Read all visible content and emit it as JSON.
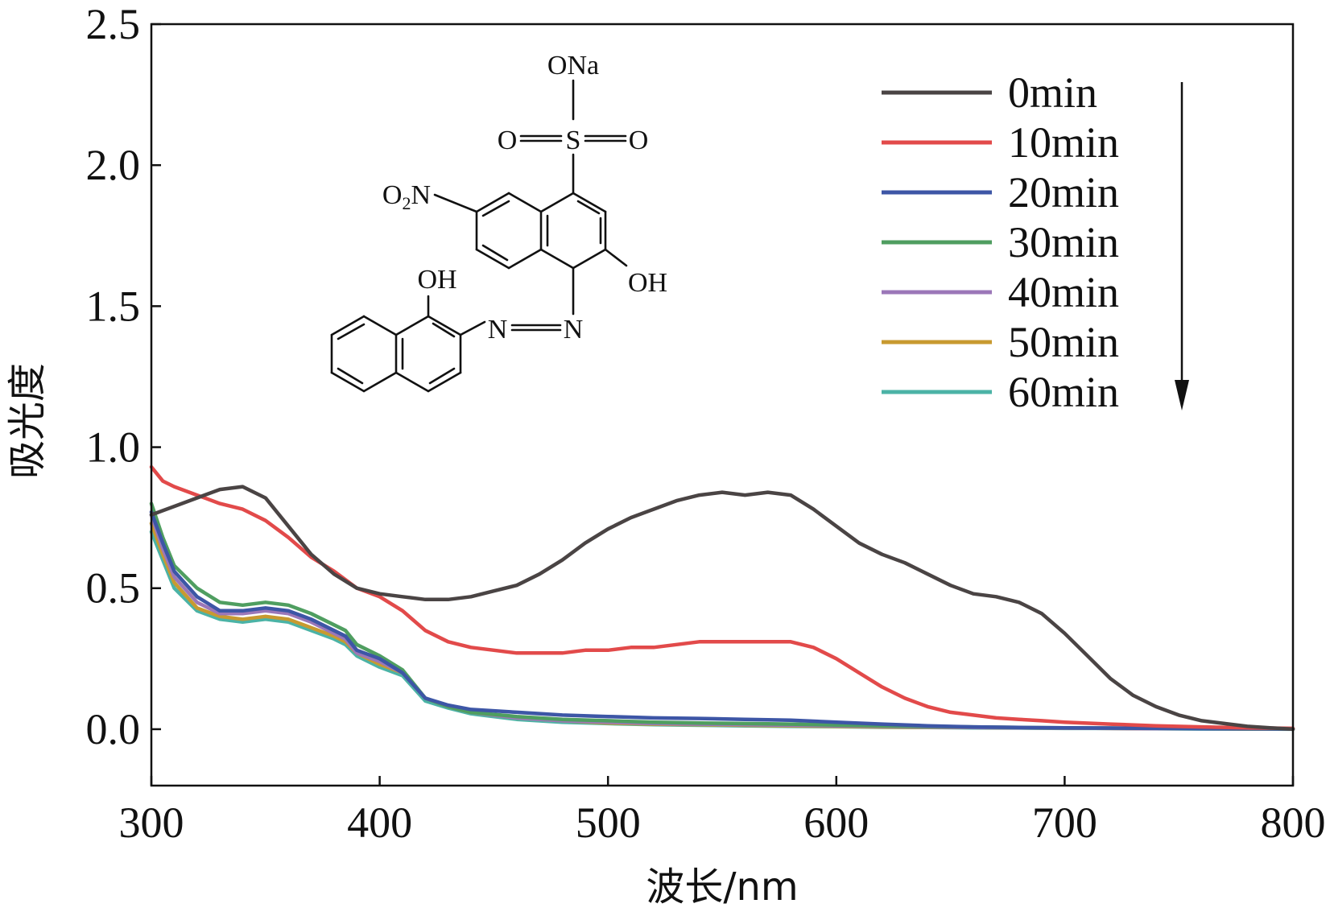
{
  "chart_data": {
    "type": "line",
    "xlabel": "波长/nm",
    "ylabel": "吸光度",
    "xlim": [
      300,
      800
    ],
    "ylim": [
      -0.2,
      2.5
    ],
    "xticks": [
      300,
      400,
      500,
      600,
      700,
      800
    ],
    "yticks": [
      0.0,
      0.5,
      1.0,
      1.5,
      2.0,
      2.5
    ],
    "xtick_labels": [
      "300",
      "400",
      "500",
      "600",
      "700",
      "800"
    ],
    "ytick_labels": [
      "0.0",
      "0.5",
      "1.0",
      "1.5",
      "2.0",
      "2.5"
    ],
    "grid": false,
    "legend_position": "top-right",
    "legend_arrow": "down",
    "series": [
      {
        "name": "0min",
        "color": "#4a4444",
        "x": [
          300,
          310,
          320,
          330,
          340,
          350,
          360,
          370,
          380,
          390,
          400,
          410,
          420,
          430,
          440,
          450,
          460,
          470,
          480,
          490,
          500,
          510,
          520,
          530,
          540,
          550,
          560,
          570,
          580,
          590,
          600,
          610,
          620,
          630,
          640,
          650,
          660,
          670,
          680,
          690,
          700,
          710,
          720,
          730,
          740,
          750,
          760,
          770,
          780,
          790,
          800
        ],
        "y": [
          0.76,
          0.79,
          0.82,
          0.85,
          0.86,
          0.82,
          0.72,
          0.62,
          0.55,
          0.5,
          0.48,
          0.47,
          0.46,
          0.46,
          0.47,
          0.49,
          0.51,
          0.55,
          0.6,
          0.66,
          0.71,
          0.75,
          0.78,
          0.81,
          0.83,
          0.84,
          0.83,
          0.84,
          0.83,
          0.78,
          0.72,
          0.66,
          0.62,
          0.59,
          0.55,
          0.51,
          0.48,
          0.47,
          0.45,
          0.41,
          0.34,
          0.26,
          0.18,
          0.12,
          0.08,
          0.05,
          0.03,
          0.02,
          0.01,
          0.005,
          0.0
        ]
      },
      {
        "name": "10min",
        "color": "#e24a4a",
        "x": [
          300,
          305,
          310,
          320,
          330,
          340,
          350,
          360,
          370,
          380,
          390,
          400,
          410,
          420,
          430,
          440,
          450,
          460,
          470,
          480,
          490,
          500,
          510,
          520,
          530,
          540,
          550,
          560,
          570,
          580,
          590,
          600,
          610,
          620,
          630,
          640,
          650,
          660,
          670,
          680,
          690,
          700,
          720,
          740,
          760,
          780,
          800
        ],
        "y": [
          0.93,
          0.88,
          0.86,
          0.83,
          0.8,
          0.78,
          0.74,
          0.68,
          0.61,
          0.56,
          0.5,
          0.47,
          0.42,
          0.35,
          0.31,
          0.29,
          0.28,
          0.27,
          0.27,
          0.27,
          0.28,
          0.28,
          0.29,
          0.29,
          0.3,
          0.31,
          0.31,
          0.31,
          0.31,
          0.31,
          0.29,
          0.25,
          0.2,
          0.15,
          0.11,
          0.08,
          0.06,
          0.05,
          0.04,
          0.035,
          0.03,
          0.025,
          0.018,
          0.012,
          0.008,
          0.005,
          0.003
        ]
      },
      {
        "name": "20min",
        "color": "#3d56a6",
        "x": [
          300,
          305,
          310,
          320,
          330,
          340,
          350,
          360,
          370,
          380,
          385,
          390,
          400,
          410,
          420,
          430,
          440,
          460,
          480,
          500,
          520,
          540,
          560,
          580,
          600,
          620,
          640,
          660,
          680,
          700,
          720,
          740,
          760,
          780,
          800
        ],
        "y": [
          0.77,
          0.66,
          0.56,
          0.47,
          0.42,
          0.42,
          0.43,
          0.42,
          0.39,
          0.35,
          0.33,
          0.28,
          0.25,
          0.2,
          0.11,
          0.085,
          0.07,
          0.06,
          0.05,
          0.045,
          0.04,
          0.038,
          0.035,
          0.032,
          0.025,
          0.018,
          0.012,
          0.008,
          0.006,
          0.005,
          0.004,
          0.003,
          0.002,
          0.002,
          0.001
        ]
      },
      {
        "name": "30min",
        "color": "#4f9e60",
        "x": [
          300,
          305,
          310,
          320,
          330,
          340,
          350,
          360,
          370,
          380,
          385,
          390,
          400,
          410,
          420,
          430,
          440,
          460,
          480,
          500,
          520,
          540,
          560,
          580,
          600,
          620,
          640,
          660,
          680,
          700,
          720,
          740,
          760,
          780,
          800
        ],
        "y": [
          0.8,
          0.68,
          0.58,
          0.5,
          0.45,
          0.44,
          0.45,
          0.44,
          0.41,
          0.37,
          0.35,
          0.3,
          0.26,
          0.21,
          0.11,
          0.08,
          0.06,
          0.045,
          0.035,
          0.03,
          0.025,
          0.022,
          0.02,
          0.018,
          0.015,
          0.012,
          0.01,
          0.008,
          0.006,
          0.005,
          0.004,
          0.003,
          0.002,
          0.001,
          0.001
        ]
      },
      {
        "name": "40min",
        "color": "#9b77b8",
        "x": [
          300,
          305,
          310,
          320,
          330,
          340,
          350,
          360,
          370,
          380,
          385,
          390,
          400,
          410,
          420,
          430,
          440,
          460,
          480,
          500,
          520,
          540,
          560,
          580,
          600,
          620,
          640,
          660,
          680,
          700,
          720,
          740,
          760,
          780,
          800
        ],
        "y": [
          0.76,
          0.64,
          0.54,
          0.45,
          0.41,
          0.41,
          0.42,
          0.41,
          0.38,
          0.34,
          0.32,
          0.27,
          0.24,
          0.2,
          0.11,
          0.08,
          0.06,
          0.04,
          0.03,
          0.025,
          0.02,
          0.018,
          0.016,
          0.014,
          0.012,
          0.01,
          0.008,
          0.006,
          0.005,
          0.004,
          0.003,
          0.002,
          0.002,
          0.001,
          0.001
        ]
      },
      {
        "name": "50min",
        "color": "#c89a30",
        "x": [
          300,
          305,
          310,
          320,
          330,
          340,
          350,
          360,
          370,
          380,
          385,
          390,
          400,
          410,
          420,
          430,
          440,
          460,
          480,
          500,
          520,
          540,
          560,
          580,
          600,
          620,
          640,
          660,
          680,
          700,
          720,
          740,
          760,
          780,
          800
        ],
        "y": [
          0.73,
          0.62,
          0.52,
          0.43,
          0.4,
          0.39,
          0.4,
          0.39,
          0.36,
          0.33,
          0.31,
          0.27,
          0.23,
          0.2,
          0.11,
          0.08,
          0.06,
          0.04,
          0.03,
          0.022,
          0.018,
          0.016,
          0.014,
          0.012,
          0.01,
          0.008,
          0.007,
          0.006,
          0.005,
          0.004,
          0.003,
          0.002,
          0.002,
          0.001,
          0.001
        ]
      },
      {
        "name": "60min",
        "color": "#4bb3a6",
        "x": [
          300,
          305,
          310,
          320,
          330,
          340,
          350,
          360,
          370,
          380,
          385,
          390,
          400,
          410,
          420,
          430,
          440,
          460,
          480,
          500,
          520,
          540,
          560,
          580,
          600,
          620,
          640,
          660,
          680,
          700,
          720,
          740,
          760,
          780,
          800
        ],
        "y": [
          0.7,
          0.6,
          0.5,
          0.42,
          0.39,
          0.38,
          0.39,
          0.38,
          0.35,
          0.32,
          0.3,
          0.26,
          0.22,
          0.19,
          0.1,
          0.075,
          0.055,
          0.035,
          0.025,
          0.02,
          0.016,
          0.014,
          0.012,
          0.01,
          0.009,
          0.007,
          0.006,
          0.005,
          0.004,
          0.003,
          0.003,
          0.002,
          0.001,
          0.001,
          0.0
        ]
      }
    ]
  },
  "structure": {
    "labels": {
      "sulfonate": "ONa",
      "oxo_left": "O",
      "sulfur": "S",
      "oxo_right": "O",
      "nitro_main": "O",
      "nitro_sub": "2",
      "nitro_n": "N",
      "hydroxy_right": "OH",
      "hydroxy_left": "OH",
      "azo_left": "N",
      "azo_right": "N"
    }
  }
}
